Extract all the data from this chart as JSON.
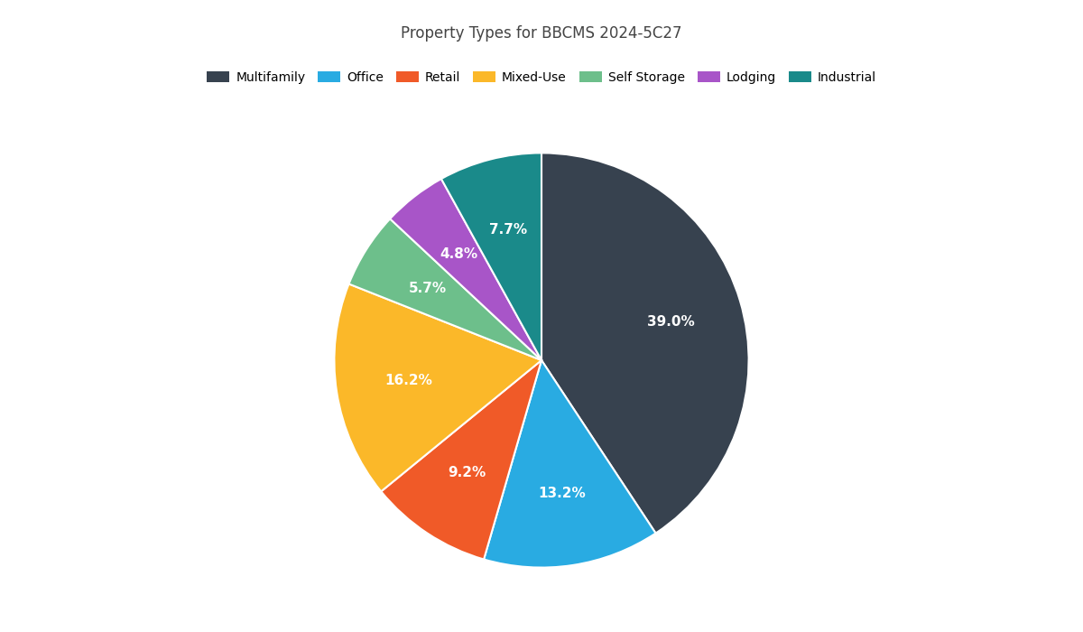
{
  "title": "Property Types for BBCMS 2024-5C27",
  "slices": [
    {
      "label": "Multifamily",
      "value": 39.0,
      "color": "#37424f"
    },
    {
      "label": "Office",
      "value": 13.2,
      "color": "#29abe2"
    },
    {
      "label": "Retail",
      "value": 9.2,
      "color": "#f05a28"
    },
    {
      "label": "Mixed-Use",
      "value": 16.2,
      "color": "#fbb829"
    },
    {
      "label": "Self Storage",
      "value": 5.7,
      "color": "#6dbf8b"
    },
    {
      "label": "Lodging",
      "value": 4.8,
      "color": "#a855c8"
    },
    {
      "label": "Industrial",
      "value": 7.7,
      "color": "#1a8a8a"
    }
  ],
  "legend_colors": [
    "#37424f",
    "#29abe2",
    "#f05a28",
    "#fbb829",
    "#6dbf8b",
    "#a855c8",
    "#1a8a8a"
  ],
  "legend_labels": [
    "Multifamily",
    "Office",
    "Retail",
    "Mixed-Use",
    "Self Storage",
    "Lodging",
    "Industrial"
  ],
  "startangle": 90,
  "title_fontsize": 12,
  "label_fontsize": 11,
  "background_color": "#ffffff"
}
